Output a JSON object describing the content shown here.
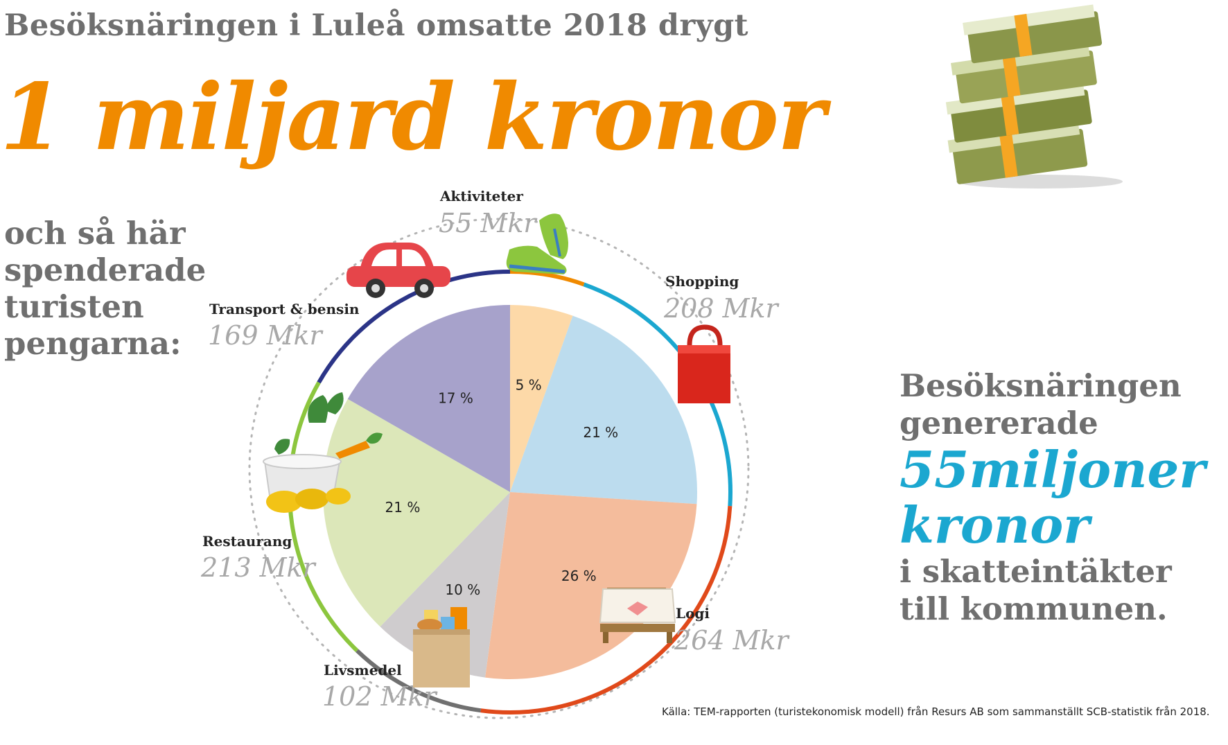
{
  "intro": "Besöksnäringen i Luleå omsatte 2018 drygt",
  "headline": "1 miljard kronor",
  "subhead": [
    "och så här",
    "spenderade",
    "turisten",
    "pengarna:"
  ],
  "tax": {
    "line1": "Besöksnäringen",
    "line2": "genererade",
    "big1": "55miljoner",
    "big2": "kronor",
    "line3": "i skatteintäkter",
    "line4": "till kommunen."
  },
  "source": "Källa: TEM-rapporten (turistekonomisk modell) från Resurs AB som sammanställt SCB-statistik från 2018.",
  "chart_data": {
    "type": "pie",
    "categories": [
      "Aktiviteter",
      "Shopping",
      "Logi",
      "Livsmedel",
      "Restaurang",
      "Transport & bensin"
    ],
    "amount_labels": [
      "55 Mkr",
      "208 Mkr",
      "264 Mkr",
      "102 Mkr",
      "213 Mkr",
      "169 Mkr"
    ],
    "values": [
      55,
      208,
      264,
      102,
      213,
      169
    ],
    "percent_labels": [
      "5 %",
      "21 %",
      "26 %",
      "10 %",
      "21 %",
      "17 %"
    ],
    "percent": [
      5,
      21,
      26,
      10,
      21,
      17
    ],
    "slice_colors": [
      "#fdd9a8",
      "#bcdcee",
      "#f4bc9c",
      "#cfccce",
      "#dce7b9",
      "#a7a2cb"
    ],
    "ring_colors": [
      "#f08a00",
      "#1ba7d0",
      "#e0491a",
      "#707070",
      "#8cc63e",
      "#2b3487"
    ],
    "icons": [
      "sneaker-icon",
      "shopping-bag-icon",
      "bed-icon",
      "grocery-bag-icon",
      "cooking-pot-icon",
      "car-icon",
      "money-stack-icon"
    ]
  }
}
